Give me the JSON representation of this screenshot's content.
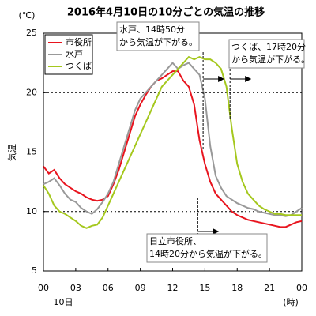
{
  "chart_data": {
    "type": "line",
    "title": "2016年4月10日の10分ごとの気温の推移",
    "y_unit": "(℃)",
    "y_label": "気温",
    "x_sublabel": "10日",
    "x_unit": "(時)",
    "x": [
      0,
      0.5,
      1,
      1.5,
      2,
      2.5,
      3,
      3.5,
      4,
      4.5,
      5,
      5.5,
      6,
      6.5,
      7,
      7.5,
      8,
      8.5,
      9,
      9.5,
      10,
      10.5,
      11,
      11.5,
      12,
      12.5,
      13,
      13.5,
      14,
      14.5,
      15,
      15.5,
      16,
      16.5,
      17,
      17.5,
      18,
      18.5,
      19,
      19.5,
      20,
      20.5,
      21,
      21.5,
      22,
      22.5,
      23,
      23.5,
      24
    ],
    "series": [
      {
        "name": "市役所",
        "color": "#e8141e",
        "values": [
          13.8,
          13.2,
          13.5,
          12.8,
          12.3,
          12.0,
          11.7,
          11.5,
          11.2,
          11.0,
          10.9,
          11.0,
          11.3,
          12.3,
          13.5,
          15.0,
          16.5,
          18.0,
          19.0,
          19.8,
          20.5,
          21.0,
          21.2,
          21.5,
          21.8,
          21.8,
          21.0,
          20.5,
          19.0,
          16.0,
          14.0,
          12.5,
          11.5,
          11.0,
          10.5,
          10.0,
          9.7,
          9.5,
          9.3,
          9.2,
          9.1,
          9.0,
          8.9,
          8.8,
          8.7,
          8.7,
          8.9,
          9.1,
          9.2
        ]
      },
      {
        "name": "水戸",
        "color": "#999999",
        "values": [
          12.3,
          12.5,
          12.8,
          12.2,
          11.5,
          11.0,
          10.8,
          10.3,
          10.0,
          9.8,
          10.2,
          10.8,
          11.5,
          12.5,
          14.0,
          15.5,
          17.0,
          18.5,
          19.5,
          20.0,
          20.5,
          21.0,
          21.5,
          22.0,
          22.5,
          22.0,
          22.3,
          22.5,
          22.0,
          21.5,
          19.5,
          15.5,
          13.0,
          12.0,
          11.3,
          11.0,
          10.7,
          10.5,
          10.3,
          10.2,
          10.0,
          9.9,
          9.8,
          9.7,
          9.7,
          9.6,
          9.7,
          10.0,
          10.3
        ]
      },
      {
        "name": "つくば",
        "color": "#a5c81e",
        "values": [
          12.2,
          11.5,
          10.5,
          10.0,
          9.8,
          9.5,
          9.2,
          8.8,
          8.6,
          8.8,
          8.9,
          9.5,
          10.5,
          11.5,
          12.5,
          13.5,
          14.5,
          15.5,
          16.5,
          17.5,
          18.5,
          19.5,
          20.5,
          21.0,
          21.5,
          22.0,
          22.5,
          23.0,
          22.8,
          23.0,
          22.8,
          22.8,
          22.5,
          22.0,
          20.5,
          17.0,
          14.0,
          12.5,
          11.5,
          11.0,
          10.5,
          10.2,
          10.0,
          9.8,
          9.8,
          9.7,
          9.7,
          9.7,
          9.7
        ]
      }
    ],
    "xlim": [
      0,
      24
    ],
    "xticks": [
      {
        "value": 0,
        "label": "00"
      },
      {
        "value": 3,
        "label": "03"
      },
      {
        "value": 6,
        "label": "06"
      },
      {
        "value": 9,
        "label": "09"
      },
      12,
      15,
      18,
      21,
      {
        "value": 24,
        "label": "00"
      }
    ],
    "ylim": [
      5,
      25
    ],
    "yticks": [
      5,
      10,
      15,
      20,
      25
    ],
    "grid_lines": [
      10,
      15,
      20
    ],
    "legend": "top-left",
    "annotations": [
      {
        "lines": [
          "水戸、14時50分",
          "から気温が下がる。"
        ],
        "x": 14.833
      },
      {
        "lines": [
          "つくば、17時20分",
          "から気温が下がる。"
        ],
        "x": 17.333
      },
      {
        "lines": [
          "日立市役所、",
          "14時20分から気温が下がる。"
        ],
        "x": 14.333
      }
    ]
  }
}
